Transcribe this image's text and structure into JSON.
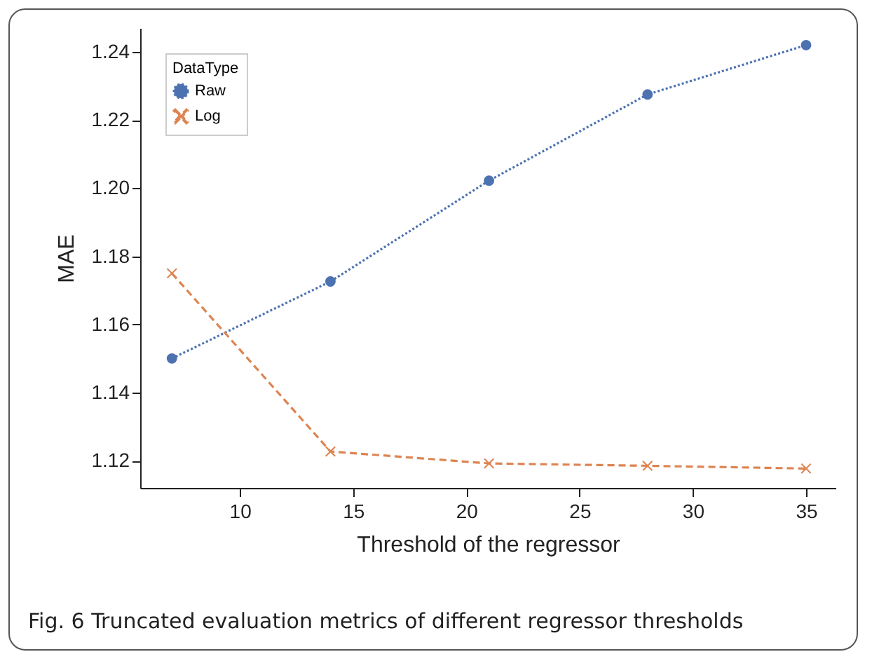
{
  "chart_data": {
    "type": "line",
    "xlabel": "Threshold of the regressor",
    "ylabel": "MAE",
    "legend_title": "DataType",
    "legend": "top left",
    "x": [
      7,
      14,
      21,
      28,
      35
    ],
    "series": [
      {
        "name": "Raw",
        "color": "#4c72b0",
        "marker": "circle",
        "line_style": "dotted",
        "values": [
          1.15,
          1.1726,
          1.2022,
          1.2275,
          1.242
        ]
      },
      {
        "name": "Log",
        "color": "#dd8452",
        "marker": "cross",
        "line_style": "dashed",
        "values": [
          1.175,
          1.1227,
          1.1192,
          1.1185,
          1.1177
        ]
      }
    ],
    "xlim": [
      5.6,
      36.3
    ],
    "xticks": [
      10,
      15,
      20,
      25,
      30,
      35
    ],
    "ylim": [
      1.112,
      1.247
    ],
    "yticks": [
      1.12,
      1.14,
      1.16,
      1.18,
      {
        "value": 1.2,
        "label": "1.20"
      },
      1.22,
      1.24
    ],
    "grid": false,
    "annotations": [
      "Fig. 6  Truncated evaluation metrics of different regressor thresholds"
    ]
  }
}
